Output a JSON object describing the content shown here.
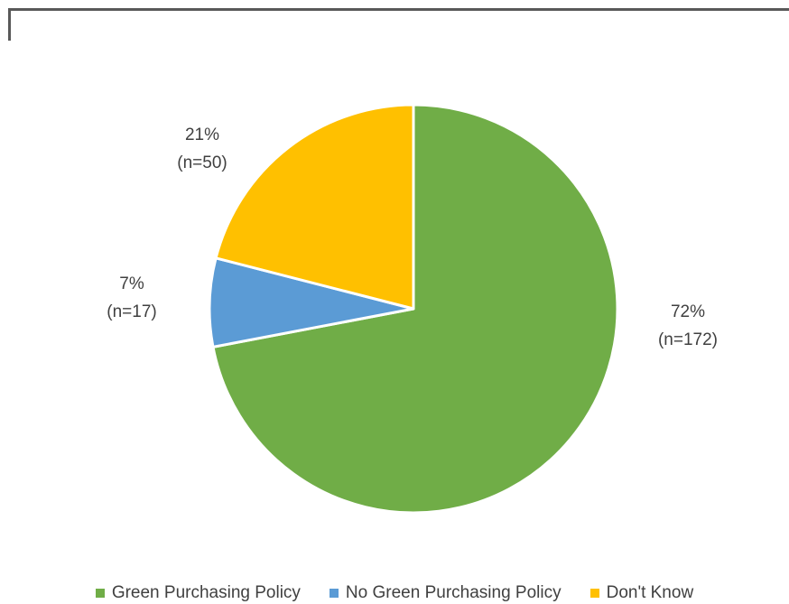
{
  "chart_data": {
    "type": "pie",
    "title": "",
    "slices": [
      {
        "label": "Green Purchasing Policy",
        "value": 72,
        "n_label": "(n=172)",
        "pct_label": "72%",
        "color": "#70AD47"
      },
      {
        "label": "No Green Purchasing Policy",
        "value": 7,
        "n_label": "(n=17)",
        "pct_label": "7%",
        "color": "#5B9BD5"
      },
      {
        "label": "Don't Know",
        "value": 21,
        "n_label": "(n=50)",
        "pct_label": "21%",
        "color": "#FFC000"
      }
    ],
    "legend_position": "bottom",
    "slice_border_color": "#ffffff"
  },
  "legend": {
    "items": [
      {
        "label": "Green Purchasing Policy",
        "color": "#70AD47"
      },
      {
        "label": "No Green Purchasing Policy",
        "color": "#5B9BD5"
      },
      {
        "label": "Don't Know",
        "color": "#FFC000"
      }
    ]
  }
}
